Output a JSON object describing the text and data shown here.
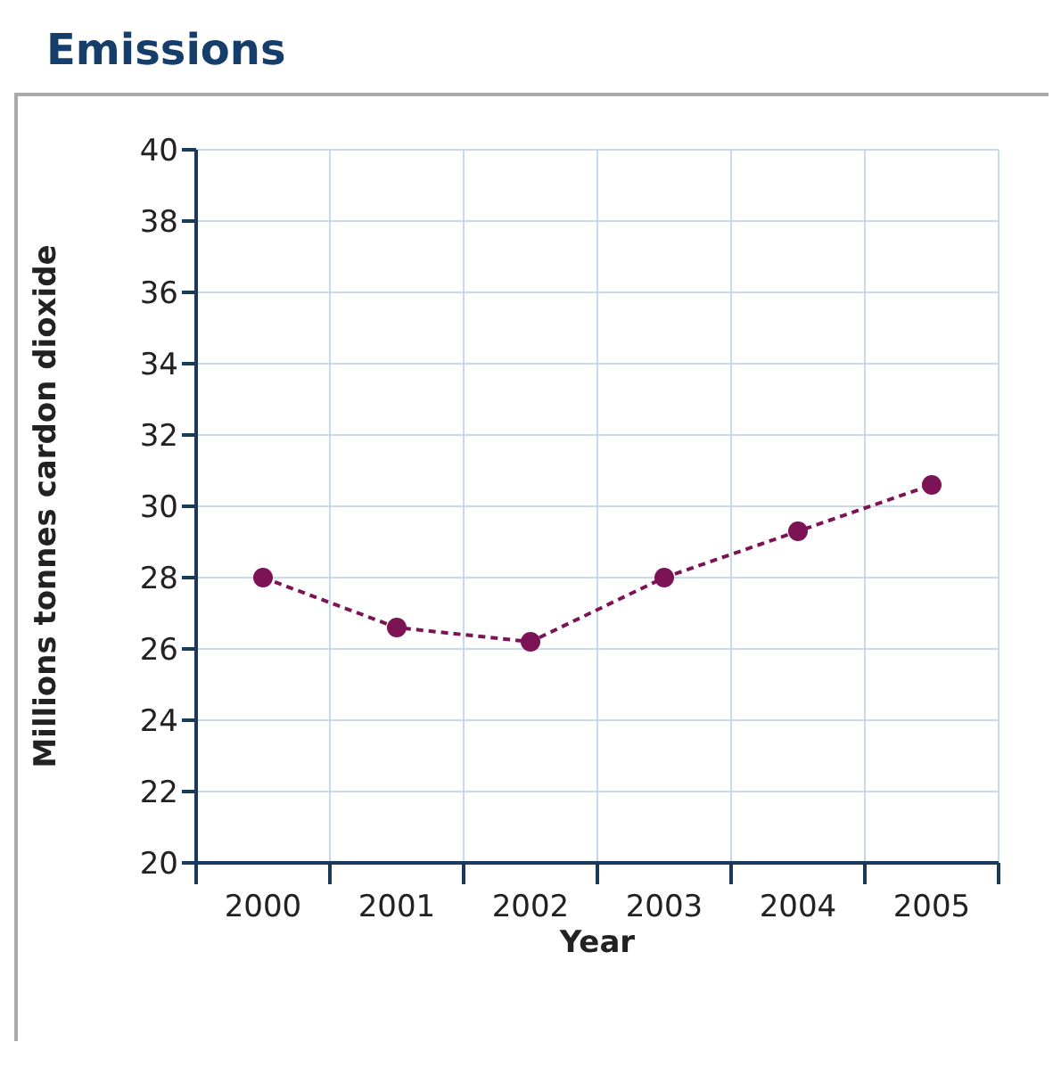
{
  "chart_data": {
    "type": "line",
    "title": "Emissions",
    "xlabel": "Year",
    "ylabel": "Millions tonnes cardon dioxide",
    "categories": [
      "2000",
      "2001",
      "2002",
      "2003",
      "2004",
      "2005"
    ],
    "series": [
      {
        "color": "#7b1355",
        "values": [
          28,
          26.6,
          26.2,
          28,
          29.3,
          30.6
        ]
      }
    ],
    "ylim": [
      20,
      40
    ],
    "yticks": [
      20,
      22,
      24,
      26,
      28,
      30,
      32,
      34,
      36,
      38,
      40
    ],
    "grid": true,
    "marker": "circle",
    "line_style": "dashed"
  }
}
